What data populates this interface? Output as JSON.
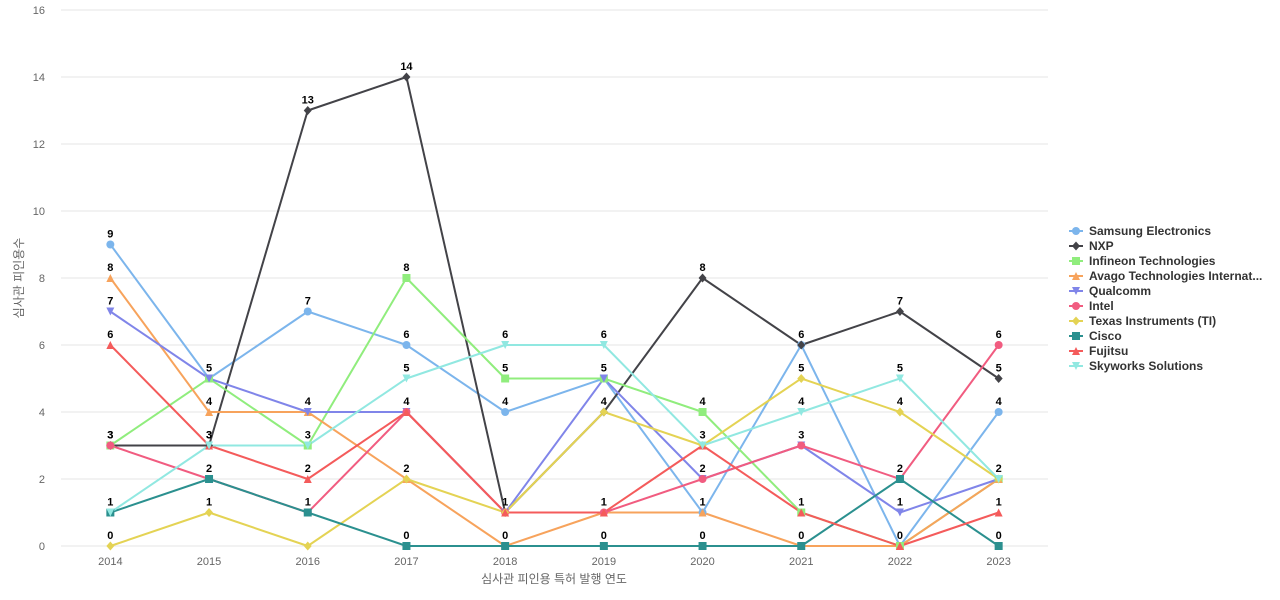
{
  "chart_data": {
    "type": "line",
    "title": "",
    "xlabel": "심사관 피인용 특허 발행 연도",
    "ylabel": "심사관 피인용수",
    "categories": [
      "2014",
      "2015",
      "2016",
      "2017",
      "2018",
      "2019",
      "2020",
      "2021",
      "2022",
      "2023"
    ],
    "ylim": [
      0,
      16
    ],
    "yticks": [
      0,
      2,
      4,
      6,
      8,
      10,
      12,
      14,
      16
    ],
    "grid": true,
    "legend_position": "right",
    "series": [
      {
        "name": "Samsung Electronics",
        "color": "#7cb5ec",
        "marker": "circle",
        "values": [
          9,
          5,
          7,
          6,
          4,
          5,
          1,
          6,
          0,
          4
        ]
      },
      {
        "name": "NXP",
        "color": "#434348",
        "marker": "diamond",
        "values": [
          3,
          3,
          13,
          14,
          1,
          4,
          8,
          6,
          7,
          5
        ]
      },
      {
        "name": "Infineon Technologies",
        "color": "#90ed7d",
        "marker": "square",
        "values": [
          3,
          5,
          3,
          8,
          5,
          5,
          4,
          1,
          0,
          2
        ]
      },
      {
        "name": "Avago Technologies Internat...",
        "color": "#f7a35c",
        "marker": "triangle",
        "values": [
          8,
          4,
          4,
          2,
          0,
          1,
          1,
          0,
          0,
          2
        ]
      },
      {
        "name": "Qualcomm",
        "color": "#8085e9",
        "marker": "triangle-down",
        "values": [
          7,
          5,
          4,
          4,
          1,
          5,
          2,
          3,
          1,
          2
        ]
      },
      {
        "name": "Intel",
        "color": "#f15c80",
        "marker": "circle",
        "values": [
          3,
          2,
          1,
          4,
          1,
          1,
          2,
          3,
          2,
          6
        ]
      },
      {
        "name": "Texas Instruments (TI)",
        "color": "#e4d354",
        "marker": "diamond",
        "values": [
          0,
          1,
          0,
          2,
          1,
          4,
          3,
          5,
          4,
          2
        ]
      },
      {
        "name": "Cisco",
        "color": "#2b908f",
        "marker": "square",
        "values": [
          1,
          2,
          1,
          0,
          0,
          0,
          0,
          0,
          2,
          0
        ]
      },
      {
        "name": "Fujitsu",
        "color": "#f45b5b",
        "marker": "triangle",
        "values": [
          6,
          3,
          2,
          4,
          1,
          1,
          3,
          1,
          0,
          1
        ]
      },
      {
        "name": "Skyworks Solutions",
        "color": "#91e8e1",
        "marker": "triangle-down",
        "values": [
          1,
          3,
          3,
          5,
          6,
          6,
          3,
          4,
          5,
          2
        ]
      }
    ],
    "data_labels": [
      {
        "category": "2014",
        "values": [
          9,
          8,
          7,
          6,
          3,
          3,
          1,
          0
        ]
      },
      {
        "category": "2015",
        "values": [
          5,
          4,
          3,
          3,
          2,
          1
        ]
      },
      {
        "category": "2016",
        "values": [
          13,
          7,
          4,
          3,
          2,
          1
        ]
      },
      {
        "category": "2017",
        "values": [
          14,
          8,
          6,
          5,
          4,
          2,
          0
        ]
      },
      {
        "category": "2018",
        "values": [
          6,
          5,
          4,
          1,
          0
        ]
      },
      {
        "category": "2019",
        "values": [
          6,
          5,
          4,
          1,
          0
        ]
      },
      {
        "category": "2020",
        "values": [
          8,
          4,
          3,
          2,
          1,
          0
        ]
      },
      {
        "category": "2021",
        "values": [
          6,
          5,
          4,
          3,
          1,
          0
        ]
      },
      {
        "category": "2022",
        "values": [
          7,
          5,
          4,
          2,
          1,
          0
        ]
      },
      {
        "category": "2023",
        "values": [
          6,
          5,
          4,
          2,
          1,
          0
        ]
      }
    ]
  }
}
